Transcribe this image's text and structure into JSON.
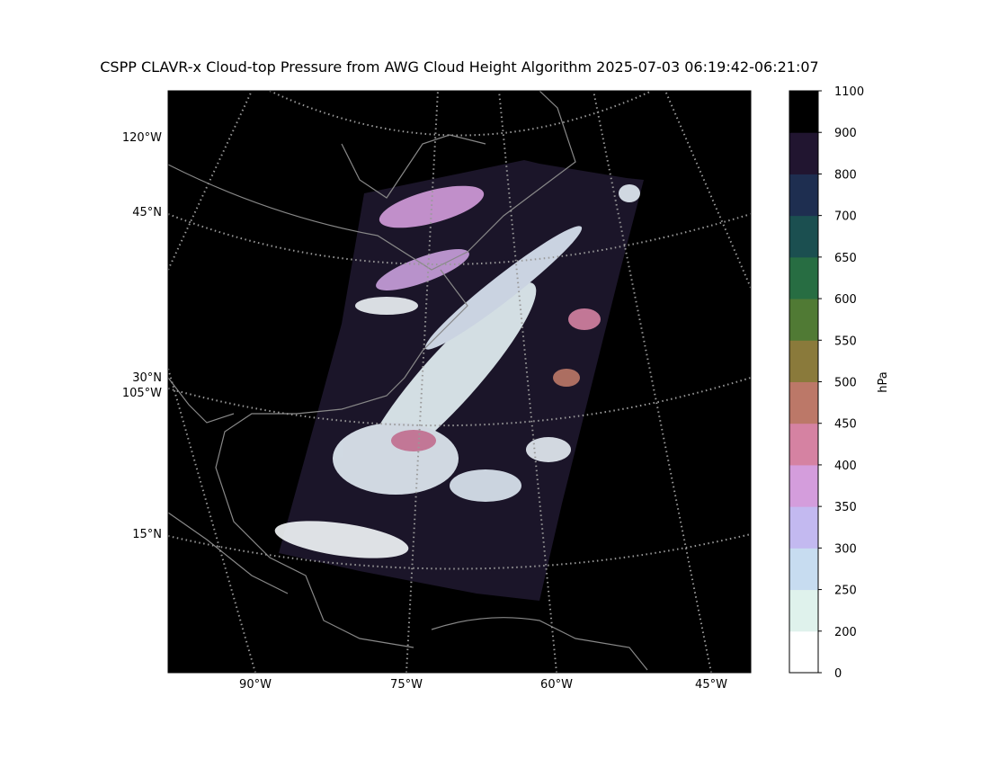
{
  "title": "CSPP CLAVR-x Cloud-top Pressure from AWG Cloud Height Algorithm 2025-07-03 06:19:42-06:21:07",
  "map": {
    "left_labels": [
      "120°W",
      "45°N",
      "30°N",
      "105°W",
      "15°N"
    ],
    "bottom_labels": [
      "90°W",
      "75°W",
      "60°W",
      "45°W"
    ]
  },
  "colorbar": {
    "label": "hPa",
    "ticks": [
      0,
      200,
      250,
      300,
      350,
      400,
      450,
      500,
      550,
      600,
      650,
      700,
      800,
      900,
      1100
    ],
    "colors": [
      "#ffffff",
      "#dff2ec",
      "#c7dcf0",
      "#c3b9f0",
      "#d49ddc",
      "#d582a2",
      "#bc7868",
      "#8a7a3b",
      "#507a34",
      "#276d42",
      "#1b4f50",
      "#1e2e50",
      "#211530",
      "#000000"
    ]
  }
}
